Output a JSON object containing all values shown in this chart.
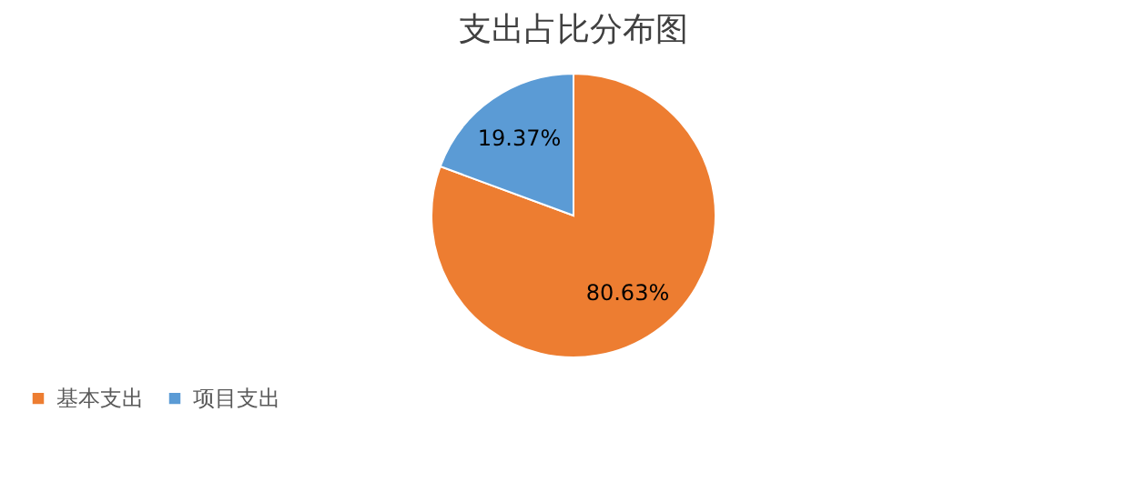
{
  "chart_data": {
    "type": "pie",
    "title": "支出占比分布图",
    "categories": [
      "基本支出",
      "项目支出"
    ],
    "values": [
      80.63,
      19.37
    ],
    "colors": [
      "#ed7d31",
      "#5b9bd5"
    ],
    "value_labels": [
      "80.63%",
      "19.37%"
    ],
    "legend": "bottom"
  }
}
